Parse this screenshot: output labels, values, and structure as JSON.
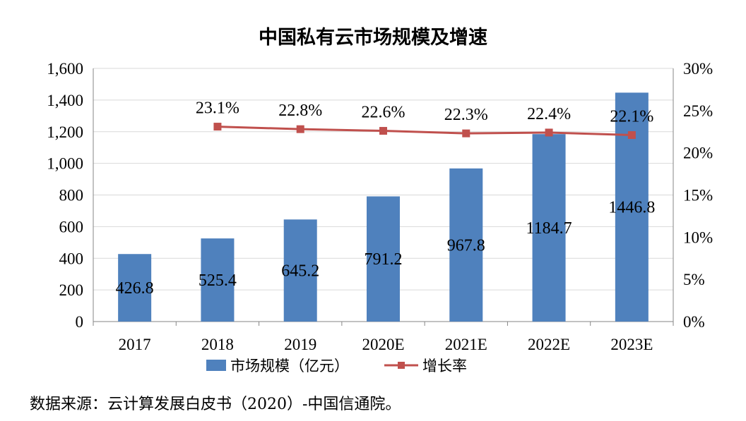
{
  "chart_data": {
    "type": "bar",
    "title": "中国私有云市场规模及增速",
    "categories": [
      "2017",
      "2018",
      "2019",
      "2020E",
      "2021E",
      "2022E",
      "2023E"
    ],
    "series": [
      {
        "name": "市场规模（亿元）",
        "type": "bar",
        "axis": "left",
        "color": "#4f81bd",
        "values": [
          426.8,
          525.4,
          645.2,
          791.2,
          967.8,
          1184.7,
          1446.8
        ],
        "labels": [
          "426.8",
          "525.4",
          "645.2",
          "791.2",
          "967.8",
          "1184.7",
          "1446.8"
        ]
      },
      {
        "name": "增长率",
        "type": "line",
        "axis": "right",
        "color": "#c0504d",
        "values": [
          null,
          23.1,
          22.8,
          22.6,
          22.3,
          22.4,
          22.1
        ],
        "labels": [
          "",
          "23.1%",
          "22.8%",
          "22.6%",
          "22.3%",
          "22.4%",
          "22.1%"
        ]
      }
    ],
    "y_left": {
      "ylim": [
        0,
        1600
      ],
      "ticks": [
        0,
        200,
        400,
        600,
        800,
        1000,
        1200,
        1400,
        1600
      ],
      "tick_labels": [
        "0",
        "200",
        "400",
        "600",
        "800",
        "1,000",
        "1,200",
        "1,400",
        "1,600"
      ]
    },
    "y_right": {
      "ylim": [
        0,
        30
      ],
      "ticks": [
        0,
        5,
        10,
        15,
        20,
        25,
        30
      ],
      "tick_labels": [
        "0%",
        "5%",
        "10%",
        "15%",
        "20%",
        "25%",
        "30%"
      ]
    },
    "grid": true,
    "legend": "bottom"
  },
  "source_note": "数据来源：云计算发展白皮书（2020）-中国信通院。"
}
